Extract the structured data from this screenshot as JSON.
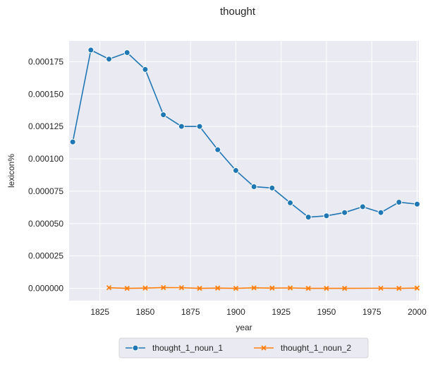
{
  "chart_data": {
    "type": "line",
    "title": "thought",
    "xlabel": "year",
    "ylabel": "lexicon%",
    "xlim": [
      1808,
      2001
    ],
    "ylim": [
      -9.5e-06,
      0.000191
    ],
    "x_ticks": [
      1825,
      1850,
      1875,
      1900,
      1925,
      1950,
      1975,
      2000
    ],
    "x_tick_labels": [
      "1825",
      "1850",
      "1875",
      "1900",
      "1925",
      "1950",
      "1975",
      "2000"
    ],
    "y_ticks": [
      0,
      2.5e-05,
      5e-05,
      7.5e-05,
      0.0001,
      0.000125,
      0.00015,
      0.000175
    ],
    "y_tick_labels": [
      "0.000000",
      "0.000025",
      "0.000050",
      "0.000075",
      "0.000100",
      "0.000125",
      "0.000150",
      "0.000175"
    ],
    "grid": true,
    "legend_position": "bottom-center",
    "colors": {
      "background": "#eaeaf2",
      "grid": "#ffffff"
    },
    "series": [
      {
        "name": "thought_1_noun_1",
        "color": "#1f77b4",
        "marker": "circle",
        "x": [
          1810,
          1820,
          1830,
          1840,
          1850,
          1860,
          1870,
          1880,
          1890,
          1900,
          1910,
          1920,
          1930,
          1940,
          1950,
          1960,
          1970,
          1980,
          1990,
          2000
        ],
        "values": [
          0.000113,
          0.000184,
          0.000177,
          0.000182,
          0.000169,
          0.000134,
          0.000125,
          0.000125,
          0.000107,
          9.1e-05,
          7.85e-05,
          7.75e-05,
          6.6e-05,
          5.5e-05,
          5.6e-05,
          5.85e-05,
          6.3e-05,
          5.85e-05,
          6.65e-05,
          6.5e-05
        ]
      },
      {
        "name": "thought_1_noun_2",
        "color": "#ff7f0e",
        "marker": "x",
        "x": [
          1830,
          1840,
          1850,
          1860,
          1870,
          1880,
          1890,
          1900,
          1910,
          1920,
          1930,
          1940,
          1950,
          1960,
          1980,
          1990,
          2000
        ],
        "values": [
          5e-07,
          0.0,
          2e-07,
          6e-07,
          5e-07,
          0.0,
          2e-07,
          0.0,
          4e-07,
          2e-07,
          3e-07,
          0.0,
          0.0,
          0.0,
          1e-07,
          0.0,
          2e-07
        ]
      }
    ]
  }
}
